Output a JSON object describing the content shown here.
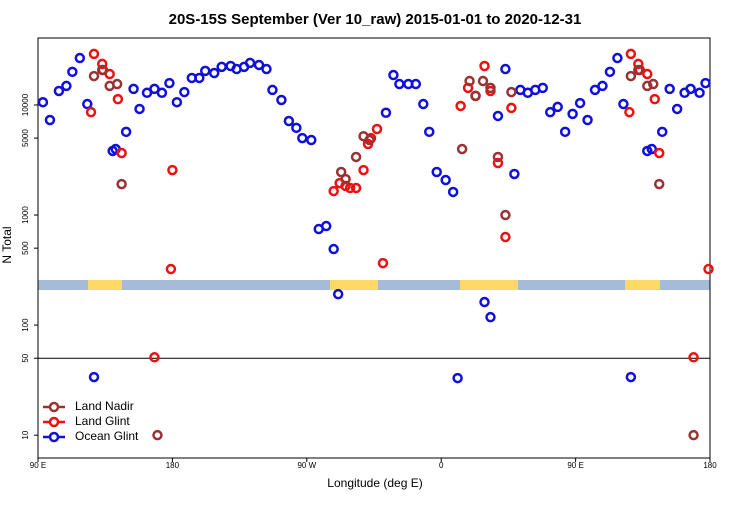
{
  "chart_data": {
    "type": "scatter",
    "title": "20S-15S September (Ver 10_raw)   2015-01-01 to 2020-12-31",
    "xlabel": "Longitude (deg E)",
    "ylabel": "N Total",
    "log_y": true,
    "legend": "lower left",
    "hline": 50,
    "xlim": [
      90,
      540
    ],
    "ylim": [
      6.2,
      40600
    ],
    "xticks": [
      {
        "value": 90,
        "label": "90 E"
      },
      180,
      {
        "value": 270,
        "label": "90 W"
      },
      {
        "value": 360,
        "label": "0"
      },
      {
        "value": 450,
        "label": "90 E"
      },
      {
        "value": 540,
        "label": "180"
      }
    ],
    "yticks": [
      10,
      50,
      100,
      500,
      1000,
      5000,
      10000
    ],
    "series": [
      {
        "name": "Land Nadir",
        "color": "#993333",
        "x": [
          127.5,
          133,
          138,
          143,
          146,
          170,
          293,
          296,
          303,
          308,
          312,
          374,
          379,
          383,
          388,
          393,
          398,
          403,
          407,
          487,
          492,
          498,
          502,
          506,
          529
        ],
        "values": [
          18300,
          20800,
          14900,
          15500,
          1910,
          10,
          2460,
          2120,
          3370,
          5200,
          4800,
          3980,
          16500,
          12100,
          16500,
          14300,
          3370,
          1000,
          13100,
          18300,
          20800,
          14900,
          15500,
          1910,
          10
        ]
      },
      {
        "name": "Land Glint",
        "color": "#ee1111",
        "x": [
          125.5,
          127.5,
          133,
          133.5,
          138,
          143.5,
          146,
          180,
          179,
          168,
          288,
          292,
          296,
          299,
          303,
          308,
          311,
          313,
          317,
          321,
          373,
          378,
          383,
          389,
          393,
          398,
          403,
          407,
          486,
          487,
          492,
          493,
          498,
          503,
          506,
          539,
          529
        ],
        "values": [
          8600,
          29100,
          23600,
          20800,
          19100,
          11300,
          3660,
          2560,
          323,
          51,
          1650,
          1950,
          1840,
          1760,
          1760,
          2560,
          4420,
          5000,
          6050,
          366,
          9800,
          14300,
          12100,
          22600,
          13400,
          2970,
          631,
          9400,
          8600,
          29100,
          23600,
          20800,
          19100,
          11300,
          3660,
          323,
          51
        ]
      },
      {
        "name": "Ocean Glint",
        "color": "#1010dd",
        "x": [
          93.3,
          98,
          104,
          109,
          113,
          118,
          123,
          127.5,
          140,
          142,
          149,
          154,
          158,
          163,
          168,
          173,
          178,
          183,
          188,
          193,
          198,
          202,
          208,
          213,
          219,
          223,
          228,
          232,
          238,
          243,
          247,
          253,
          258,
          263,
          267,
          273,
          278,
          283,
          288,
          291,
          323,
          328,
          332,
          338,
          343,
          348,
          352,
          357,
          363,
          368,
          371,
          389,
          393,
          398,
          403,
          409,
          413,
          418,
          423,
          428,
          433,
          438,
          443,
          448,
          453,
          458,
          463,
          468,
          473,
          478,
          482,
          487,
          498,
          501,
          508,
          513,
          518,
          523,
          527,
          533,
          537
        ],
        "values": [
          10600,
          7300,
          13400,
          14900,
          20000,
          26700,
          10200,
          33.7,
          3820,
          3980,
          5700,
          14000,
          9200,
          12900,
          14000,
          12900,
          15800,
          10600,
          13100,
          17600,
          17600,
          20400,
          19500,
          22200,
          22600,
          21200,
          22200,
          24100,
          23100,
          21200,
          13700,
          11100,
          7150,
          6200,
          5000,
          4800,
          746,
          794,
          491,
          191,
          8500,
          18700,
          15500,
          15500,
          15500,
          10200,
          5700,
          2460,
          2080,
          1620,
          33,
          162,
          118,
          7950,
          21200,
          2360,
          13700,
          12900,
          13700,
          14300,
          8600,
          9600,
          5700,
          8300,
          10400,
          7300,
          13700,
          14900,
          20000,
          26700,
          10200,
          33.7,
          3820,
          3980,
          5700,
          14000,
          9200,
          12900,
          14000,
          12900,
          15800
        ]
      }
    ]
  }
}
